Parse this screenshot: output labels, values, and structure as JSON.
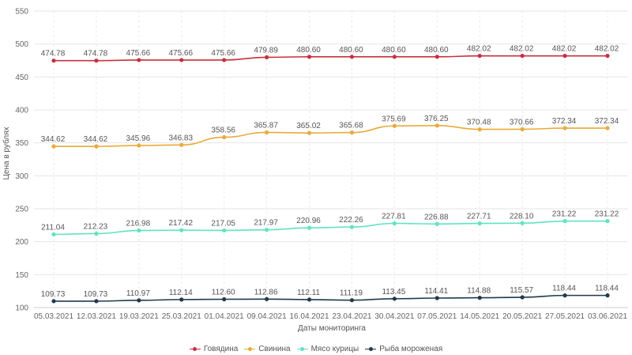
{
  "chart_data": {
    "type": "line",
    "xlabel": "Даты мониторинга",
    "ylabel": "Цена в рублях",
    "ylim": [
      100,
      550
    ],
    "yticks": [
      100,
      150,
      200,
      250,
      300,
      350,
      400,
      450,
      500,
      550
    ],
    "grid": true,
    "legend_position": "bottom",
    "categories": [
      "05.03.2021",
      "12.03.2021",
      "19.03.2021",
      "25.03.2021",
      "01.04.2021",
      "09.04.2021",
      "16.04.2021",
      "23.04.2021",
      "30.04.2021",
      "07.05.2021",
      "14.05.2021",
      "20.05.2021",
      "27.05.2021",
      "03.06.2021"
    ],
    "series": [
      {
        "name": "Говядина",
        "color": "#c8303e",
        "values": [
          474.78,
          474.78,
          475.66,
          475.66,
          475.66,
          479.89,
          480.6,
          480.6,
          480.6,
          480.6,
          482.02,
          482.02,
          482.02,
          482.02
        ],
        "labels": [
          "474.78",
          "474.78",
          "475.66",
          "475.66",
          "475.66",
          "479.89",
          "480.60",
          "480.60",
          "480.60",
          "480.60",
          "482.02",
          "482.02",
          "482.02",
          "482.02"
        ]
      },
      {
        "name": "Свинина",
        "color": "#e8ab3a",
        "values": [
          344.62,
          344.62,
          345.96,
          346.83,
          358.56,
          365.87,
          365.02,
          365.68,
          375.69,
          376.25,
          370.48,
          370.66,
          372.34,
          372.34
        ],
        "labels": [
          "344.62",
          "344.62",
          "345.96",
          "346.83",
          "358.56",
          "365.87",
          "365.02",
          "365.68",
          "375.69",
          "376.25",
          "370.48",
          "370.66",
          "372.34",
          "372.34"
        ]
      },
      {
        "name": "Мясо курицы",
        "color": "#5fe3c2",
        "values": [
          211.04,
          212.23,
          216.98,
          217.42,
          217.05,
          217.97,
          220.96,
          222.26,
          227.81,
          226.88,
          227.71,
          228.1,
          231.22,
          231.22
        ],
        "labels": [
          "211.04",
          "212.23",
          "216.98",
          "217.42",
          "217.05",
          "217.97",
          "220.96",
          "222.26",
          "227.81",
          "226.88",
          "227.71",
          "228.10",
          "231.22",
          "231.22"
        ]
      },
      {
        "name": "Рыба мороженая",
        "color": "#1f3a4d",
        "values": [
          109.73,
          109.73,
          110.97,
          112.14,
          112.6,
          112.86,
          112.11,
          111.19,
          113.45,
          114.41,
          114.88,
          115.57,
          118.44,
          118.44
        ],
        "labels": [
          "109.73",
          "109.73",
          "110.97",
          "112.14",
          "112.60",
          "112.86",
          "112.11",
          "111.19",
          "113.45",
          "114.41",
          "114.88",
          "115.57",
          "118.44",
          "118.44"
        ]
      }
    ]
  }
}
